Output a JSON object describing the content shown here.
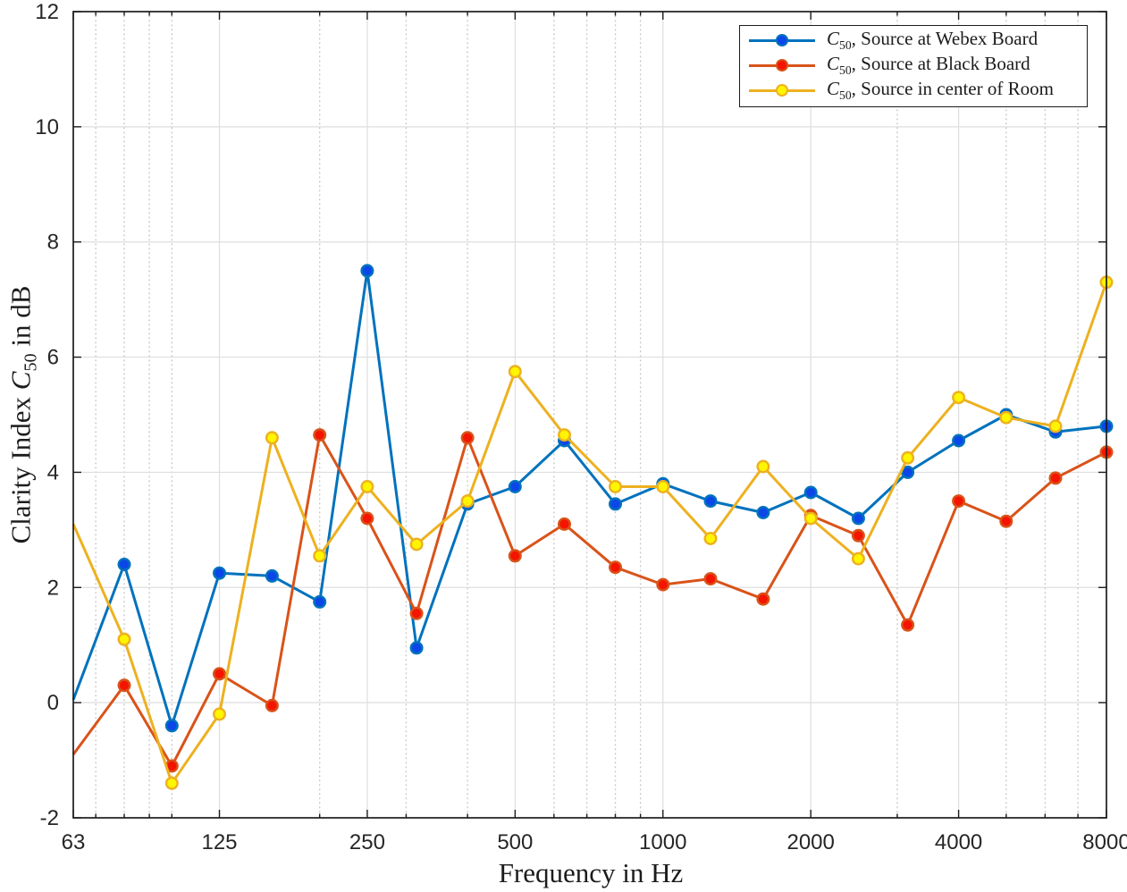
{
  "figure": {
    "background": "#ffffff"
  },
  "colors": {
    "axis": "#1c1c1c",
    "tick_label": "#262626",
    "grid_major": "#dedede",
    "grid_minor": "#c8c8c8",
    "legend_border": "#1c1c1c",
    "legend_background": "#ffffff"
  },
  "labels": {
    "xlabel": "Frequency in Hz",
    "ylabel_pre": "Clarity Index ",
    "ylabel_symbol": "C",
    "ylabel_subscript": "50",
    "ylabel_post": " in dB"
  },
  "legend": {
    "position": "top-right",
    "items": [
      {
        "symbol": "C",
        "subscript": "50",
        "text": ", Source at Webex Board"
      },
      {
        "symbol": "C",
        "subscript": "50",
        "text": ", Source at Black Board"
      },
      {
        "symbol": "C",
        "subscript": "50",
        "text": ", Source in center of Room"
      }
    ]
  },
  "chart_data": {
    "type": "line",
    "title": "",
    "xlabel": "Frequency in Hz",
    "ylabel": "Clarity Index C50 in dB",
    "x_scale": "log",
    "xlim": [
      63,
      8000
    ],
    "ylim": [
      -2,
      12
    ],
    "grid": true,
    "minor_grid": true,
    "legend_position": "top-right",
    "x_ticks": [
      63,
      125,
      250,
      500,
      1000,
      2000,
      4000,
      8000
    ],
    "x_tick_labels": [
      "63",
      "125",
      "250",
      "500",
      "1000",
      "2000",
      "4000",
      "8000"
    ],
    "x_minor_gridlines": [
      70,
      80,
      90,
      100,
      200,
      300,
      400,
      600,
      700,
      800,
      900,
      3000,
      5000,
      6000,
      7000
    ],
    "y_ticks": [
      -2,
      0,
      2,
      4,
      6,
      8,
      10,
      12
    ],
    "y_tick_labels": [
      "-2",
      "0",
      "2",
      "4",
      "6",
      "8",
      "10",
      "12"
    ],
    "x": [
      63,
      80,
      100,
      125,
      160,
      200,
      250,
      315,
      400,
      500,
      630,
      800,
      1000,
      1250,
      1600,
      2000,
      2500,
      3150,
      4000,
      5000,
      6300,
      8000
    ],
    "series": [
      {
        "name": "C50, Source at Webex Board",
        "slug": "webex-board",
        "color": "#0072BD",
        "marker_color": "#0b46e8",
        "values": [
          0.05,
          2.4,
          -0.4,
          2.25,
          2.2,
          1.75,
          7.5,
          0.95,
          3.45,
          3.75,
          4.55,
          3.45,
          3.8,
          3.5,
          3.3,
          3.65,
          3.2,
          4.0,
          4.55,
          5.0,
          4.7,
          4.8
        ]
      },
      {
        "name": "C50, Source at Black Board",
        "slug": "black-board",
        "color": "#D95319",
        "marker_color": "#f41400",
        "values": [
          -0.9,
          0.3,
          -1.1,
          0.5,
          -0.05,
          4.65,
          3.2,
          1.55,
          4.6,
          2.55,
          3.1,
          2.35,
          2.05,
          2.15,
          1.8,
          3.25,
          2.9,
          1.35,
          3.5,
          3.15,
          3.9,
          4.35
        ]
      },
      {
        "name": "C50, Source in center of Room",
        "slug": "room-center",
        "color": "#EDB120",
        "marker_color": "#fff500",
        "values": [
          3.1,
          1.1,
          -1.4,
          -0.2,
          4.6,
          2.55,
          3.75,
          2.75,
          3.5,
          5.75,
          4.65,
          3.75,
          3.75,
          2.85,
          4.1,
          3.2,
          2.5,
          4.25,
          5.3,
          4.95,
          4.8,
          7.3
        ]
      }
    ]
  }
}
